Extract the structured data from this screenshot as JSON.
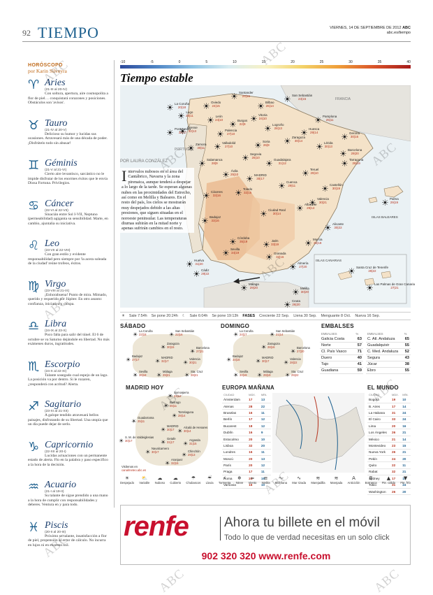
{
  "header": {
    "page": "92",
    "section": "TIEMPO",
    "date": "VIERNES, 14 DE SEPTIEMBRE DE 2012",
    "brand": "ABC",
    "site": "abc.es/tiempo"
  },
  "horoscope": {
    "title": "HORÓSCOPO",
    "byline": "por Karin Silveyra",
    "signs": [
      {
        "symbol": "♈",
        "name": "Aries",
        "dates": "(21-III al 20-IV)",
        "text": "Con soltura, apertura, aire cosmopolita a flor de piel… conquistará corazones y posiciones. Obstáculos son 'avisos'."
      },
      {
        "symbol": "♉",
        "name": "Tauro",
        "dates": "(21-IV al 20-V)",
        "text": "Delicioso su humor y lucidas sus ocasiones. Atravesará más de una década de poder. ¡Disfrútelo todo sin abusar!"
      },
      {
        "symbol": "♊",
        "name": "Géminis",
        "dates": "(21-V al 21-VI)",
        "text": "Cierto aire levantisco, sarcástico no le impide disfrutar de los enormes éxitos que le envía Diosa Fortuna. Privilegios."
      },
      {
        "symbol": "♋",
        "name": "Cáncer",
        "dates": "(22-VI al 22-VII)",
        "text": "Sinacián entre Sol I-VII, Neptuno (permeabilidad) agiganta su sensibilidad. Marte, en cambio, ajuntalia su iniciativa."
      },
      {
        "symbol": "♌",
        "name": "Leo",
        "dates": "(23-VII al 22-VIII)",
        "text": "Con gran estilo y evidente responsabilidad pero siempre por 'la acera soleada de la ciudad' reúne trofeos, éxitos."
      },
      {
        "symbol": "♍",
        "name": "Virgo",
        "dates": "(23-VIII al 21-IX)",
        "text": "¡Enhorabuena! Punto de mira. Mimado, querido y requerido por Júpiter. En otro asunto: confianza, iniciativa y chispa."
      },
      {
        "symbol": "♎",
        "name": "Libra",
        "dates": "(24-IX al 23-X)",
        "text": "Poco falta para salir del túnel. El 6 de octubre se va Saturno dejándole en libertad. No más exámenes duros, ingratitudes."
      },
      {
        "symbol": "♏",
        "name": "Escorpio",
        "dates": "(24-X al 22-XI)",
        "text": "Talante sosegado cual espejo de un lago. La posición va por dentro. Si le rozaren, ¿responderá con acritud? Alerta."
      },
      {
        "symbol": "♐",
        "name": "Sagitario",
        "dates": "(23-XI al 21-XII)",
        "text": "A galope tendido atravesará bellos paisajes, disfrutando de su libertad. Una utopía que un día puede dejar de serlo."
      },
      {
        "symbol": "♑",
        "name": "Capricornio",
        "dates": "(22-XII al 20-I)",
        "text": "Lucidas actuaciones con un permanente estado de alerta. Flo en la palabra y paso específico a la hora de la decisión."
      },
      {
        "symbol": "♒",
        "name": "Acuario",
        "dates": "(21-I al 19-II)",
        "text": "Su talante de sigue prendido a una mano a la hora de cumplir con responsabilidades y deberes. Ventura en y para todo."
      },
      {
        "symbol": "♓",
        "name": "Piscis",
        "dates": "(20-II al 20-III)",
        "text": "Próximo su talante, insatisfacción a flor de piel, propensión al error de cálculo. No incurra en lujos ni en excesos mil."
      }
    ]
  },
  "scale": {
    "ticks": [
      "-10",
      "-5",
      "0",
      "5",
      "10",
      "15",
      "20",
      "25",
      "30",
      "35",
      "40"
    ]
  },
  "main": {
    "title": "Tiempo estable",
    "byline": "POR LAURA CONZÁLEZ",
    "dropcap": "I",
    "article": "ntervalos nubosos en el área del Cantábrico, Navarra y la zona pirenaica, aunque tenderá a despejar a lo largo de la tarde. Se esperan algunas nubes en las proximidades del Estrecho, así como en Melilla y Baleares. En el resto del país, los cielos se mostrarán muy despejados debido a las altas presiones, que siguen situadas en el noroeste peninsular. Las temperaturas diurnas subirán en la mitad norte y apenas sufrirán cambios en el resto.",
    "labels": {
      "francia": "FRANCIA",
      "portugal": "PORTUGAL",
      "baleares": "ISLAS BALEARES",
      "canarias": "ISLAS CANARIAS"
    }
  },
  "cities": [
    {
      "name": "La Coruña",
      "temps": "20|18"
    },
    {
      "name": "Oviedo",
      "temps": "24|15"
    },
    {
      "name": "Santander",
      "temps": "24|16"
    },
    {
      "name": "Bilbao",
      "temps": "26|14"
    },
    {
      "name": "San Sebastián",
      "temps": "23|15"
    },
    {
      "name": "Pamplona",
      "temps": "25|11"
    },
    {
      "name": "Lugo",
      "temps": "28|11"
    },
    {
      "name": "León",
      "temps": "24|10"
    },
    {
      "name": "Burgos",
      "temps": "22|9"
    },
    {
      "name": "Vitoria",
      "temps": "24|10"
    },
    {
      "name": "Logroño",
      "temps": "28|13"
    },
    {
      "name": "Huesca",
      "temps": "29|14"
    },
    {
      "name": "Gerona",
      "temps": "30|16"
    },
    {
      "name": "Pontevedra",
      "temps": "28|17"
    },
    {
      "name": "Orense",
      "temps": "32|13"
    },
    {
      "name": "Palencia",
      "temps": "27|10"
    },
    {
      "name": "Soria",
      "temps": "26|9"
    },
    {
      "name": "Zaragoza",
      "temps": "30|14"
    },
    {
      "name": "Lérida",
      "temps": "30|13"
    },
    {
      "name": "Barcelona",
      "temps": "29|20"
    },
    {
      "name": "Zamora",
      "temps": "30|11"
    },
    {
      "name": "Valladolid",
      "temps": "27|10"
    },
    {
      "name": "Segovia",
      "temps": "26|10"
    },
    {
      "name": "Guadalajara",
      "temps": "31|12"
    },
    {
      "name": "Tarragona",
      "temps": "28|19"
    },
    {
      "name": "Salamanca",
      "temps": "28|9"
    },
    {
      "name": "Ávila",
      "temps": "25|10"
    },
    {
      "name": "MADRID",
      "temps": "30|17"
    },
    {
      "name": "Cuenca",
      "temps": "29|11"
    },
    {
      "name": "Teruel",
      "temps": "29|10"
    },
    {
      "name": "Castellón",
      "temps": "30|19"
    },
    {
      "name": "Cáceres",
      "temps": "33|16"
    },
    {
      "name": "Toledo",
      "temps": "32|15"
    },
    {
      "name": "Valencia",
      "temps": "30|21"
    },
    {
      "name": "Palma",
      "temps": "29|19"
    },
    {
      "name": "Badajoz",
      "temps": "33|16"
    },
    {
      "name": "Ciudad Real",
      "temps": "30|14"
    },
    {
      "name": "Albacete",
      "temps": "29|14"
    },
    {
      "name": "Alicante",
      "temps": "30|22"
    },
    {
      "name": "Córdoba",
      "temps": "35|19"
    },
    {
      "name": "Jaén",
      "temps": "33|19"
    },
    {
      "name": "Murcia",
      "temps": "32|18"
    },
    {
      "name": "Huelva",
      "temps": "31|20"
    },
    {
      "name": "Sevilla",
      "temps": "34|19"
    },
    {
      "name": "Granada",
      "temps": "32|16"
    },
    {
      "name": "Almería",
      "temps": "27|20"
    },
    {
      "name": "Cádiz",
      "temps": "29|22"
    },
    {
      "name": "Málaga",
      "temps": "29|20"
    },
    {
      "name": "Ceuta",
      "temps": "26|20"
    },
    {
      "name": "Melilla",
      "temps": "30|20"
    },
    {
      "name": "Santa Cruz de Tenerife",
      "temps": "28|22"
    },
    {
      "name": "Las Palmas de Gran Canaria",
      "temps": "27|21"
    }
  ],
  "strip": {
    "sol_sale": "Sale 7:54h",
    "sol_pone": "Se pone 20:24h",
    "luna_sale": "Sale 6:04h",
    "luna_pone": "Se pone 19:13h",
    "fases": "FASES",
    "creciente": "Creciente 22 Sep.",
    "llena": "Llena 30 Sep.",
    "menguante": "Menguante 8 Oct.",
    "nueva": "Nueva 16 Sep."
  },
  "sabado": {
    "title": "SÁBADO",
    "cities": [
      {
        "name": "La Coruña",
        "temps": "22|18"
      },
      {
        "name": "San Sebastián",
        "temps": "22|16"
      },
      {
        "name": "Zaragoza",
        "temps": "30|15"
      },
      {
        "name": "Barcelona",
        "temps": "27|21"
      },
      {
        "name": "Badajoz",
        "temps": "37|17"
      },
      {
        "name": "MADRID",
        "temps": "32|17"
      },
      {
        "name": "Valencia",
        "temps": "30|21"
      },
      {
        "name": "Sevilla",
        "temps": "36|18"
      },
      {
        "name": "Málaga",
        "temps": "29|21"
      },
      {
        "name": "Sta. Cruz",
        "temps": "28|21"
      }
    ]
  },
  "domingo": {
    "title": "DOMINGO",
    "cities": [
      {
        "name": "La Coruña",
        "temps": "24|17"
      },
      {
        "name": "San Sebastián",
        "temps": "21|14"
      },
      {
        "name": "Zaragoza",
        "temps": "28|16"
      },
      {
        "name": "Barcelona",
        "temps": "27|20"
      },
      {
        "name": "Badajoz",
        "temps": "34|16"
      },
      {
        "name": "MADRID",
        "temps": "30|17"
      },
      {
        "name": "Valencia",
        "temps": "28|22"
      },
      {
        "name": "Sevilla",
        "temps": "34|19"
      },
      {
        "name": "Málaga",
        "temps": "29|19"
      },
      {
        "name": "Sta. Cruz",
        "temps": "29|22"
      }
    ]
  },
  "embalses": {
    "title": "EMBALSES",
    "head": [
      "EMBALSES",
      "%"
    ],
    "left": [
      [
        "Galicia Costa",
        "63"
      ],
      [
        "Norte",
        "57"
      ],
      [
        "Cl. País Vasco",
        "71"
      ],
      [
        "Duero",
        "40"
      ],
      [
        "Tajo",
        "41"
      ],
      [
        "Guadiana",
        "59"
      ]
    ],
    "right": [
      [
        "C. Atl. Andaluza",
        "65"
      ],
      [
        "Guadalquivir",
        "55"
      ],
      [
        "C. Med. Andaluza",
        "52"
      ],
      [
        "Segura",
        "43"
      ],
      [
        "Júcar",
        "38"
      ],
      [
        "Ebro",
        "55"
      ]
    ]
  },
  "madrid": {
    "title": "MADRID HOY",
    "web": "Visítenos en",
    "web2": "canalmeteo.abc.es",
    "cities": [
      {
        "name": "Somosierra",
        "temps": "21|12"
      },
      {
        "name": "Buitrago",
        "temps": "26|11"
      },
      {
        "name": "Torrelaguna",
        "temps": "28|14"
      },
      {
        "name": "Guadarrama",
        "temps": "25|11"
      },
      {
        "name": "MADRID",
        "temps": "30|17"
      },
      {
        "name": "Alcalá de Henares",
        "temps": "30|14"
      },
      {
        "name": "S. M. de Valdeiglesias",
        "temps": "30|17"
      },
      {
        "name": "Getafe",
        "temps": "31|17"
      },
      {
        "name": "Arganda",
        "temps": "31|15"
      },
      {
        "name": "Navalcarnero",
        "temps": "30|17"
      },
      {
        "name": "Chinchón",
        "temps": "29|13"
      },
      {
        "name": "Aranjuez",
        "temps": "32|15"
      }
    ]
  },
  "europa": {
    "title": "EUROPA MAÑANA",
    "head": [
      "CIUDAD",
      "MÁX.",
      "MÍN."
    ],
    "rows": [
      [
        "Ámsterdam",
        "17",
        "13"
      ],
      [
        "Atenas",
        "28",
        "22"
      ],
      [
        "Bruselas",
        "16",
        "11"
      ],
      [
        "Berlín",
        "17",
        "12"
      ],
      [
        "Bucarest",
        "18",
        "12"
      ],
      [
        "Dublín",
        "16",
        "9"
      ],
      [
        "Estocolmo",
        "20",
        "10"
      ],
      [
        "Lisboa",
        "32",
        "20"
      ],
      [
        "Londres",
        "16",
        "11"
      ],
      [
        "Moscú",
        "20",
        "13"
      ],
      [
        "París",
        "20",
        "12"
      ],
      [
        "Praga",
        "17",
        "11"
      ],
      [
        "Roma",
        "24",
        "15"
      ],
      [
        "Varsovia",
        "16",
        "10"
      ]
    ]
  },
  "mundo": {
    "title": "EL MUNDO",
    "head": [
      "CIUDAD",
      "MÁX.",
      "MÍN."
    ],
    "rows": [
      [
        "Bogotá",
        "19",
        "10"
      ],
      [
        "B. Aires",
        "17",
        "14"
      ],
      [
        "La Habana",
        "31",
        "24"
      ],
      [
        "El Cairo",
        "33",
        "24"
      ],
      [
        "Lima",
        "20",
        "16"
      ],
      [
        "Los Ángeles",
        "26",
        "21"
      ],
      [
        "México",
        "21",
        "14"
      ],
      [
        "Montevideo",
        "23",
        "15"
      ],
      [
        "Nueva York",
        "26",
        "21"
      ],
      [
        "Pekín",
        "24",
        "20"
      ],
      [
        "Quito",
        "22",
        "11"
      ],
      [
        "Rabat",
        "32",
        "21"
      ],
      [
        "Sydney",
        "17",
        "14"
      ],
      [
        "Tokio",
        "31",
        "24"
      ],
      [
        "Washington",
        "26",
        "20"
      ]
    ]
  },
  "legend": [
    {
      "icon": "☀",
      "label": "Despejado"
    },
    {
      "icon": "⛅",
      "label": "Variable"
    },
    {
      "icon": "☁",
      "label": "Nuboso"
    },
    {
      "icon": "☁",
      "label": "Cubierto"
    },
    {
      "icon": "☂",
      "label": "Chubascos"
    },
    {
      "icon": "☔",
      "label": "Lluvia"
    },
    {
      "icon": "⚡",
      "label": "Tormenta"
    },
    {
      "icon": "❄",
      "label": "Nieve"
    },
    {
      "icon": "≈",
      "label": "Viento"
    },
    {
      "icon": "≡",
      "label": "Niebla"
    },
    {
      "icon": "〜",
      "label": "Mar llana"
    },
    {
      "icon": "∿",
      "label": "Mar rizada"
    },
    {
      "icon": "≋",
      "label": "Marejadilla"
    },
    {
      "icon": "≋",
      "label": "Marejada"
    },
    {
      "icon": "A",
      "label": "Anticiclón"
    },
    {
      "icon": "B",
      "label": "Borrasca"
    },
    {
      "icon": "▲",
      "label": "Fte. cálido"
    },
    {
      "icon": "▼",
      "label": "Fte. frío"
    }
  ],
  "ad": {
    "logo": "renfe",
    "line1": "Ahora tu billete en el móvil",
    "line2": "Todo lo que de verdad necesitas en un solo click",
    "line3": "902 320 320  www.renfe.com"
  },
  "watermark": "ABC"
}
